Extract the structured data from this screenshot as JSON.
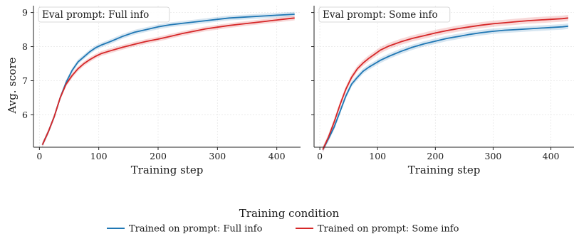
{
  "figure": {
    "shared_ylabel": "Avg. score",
    "legend_title": "Training condition",
    "legend_placement": "bottom-center",
    "colors": {
      "blue": "#1f77b4",
      "red": "#d62728"
    }
  },
  "chart_data": [
    {
      "type": "line",
      "annotation": "Eval prompt: Full info",
      "xlabel": "Training step",
      "ylabel": "Avg. score",
      "xlim": [
        -10,
        440
      ],
      "ylim": [
        5.05,
        9.2
      ],
      "xticks": [
        0,
        100,
        200,
        300,
        400
      ],
      "yticks": [
        6,
        7,
        8,
        9
      ],
      "grid": true,
      "series": [
        {
          "name": "Trained on prompt: Full info",
          "color": "#1f77b4",
          "x": [
            5,
            15,
            25,
            35,
            45,
            55,
            65,
            75,
            85,
            95,
            105,
            120,
            140,
            160,
            180,
            200,
            220,
            240,
            260,
            280,
            300,
            320,
            340,
            360,
            380,
            400,
            420,
            430
          ],
          "y": [
            5.12,
            5.5,
            5.95,
            6.5,
            6.95,
            7.3,
            7.55,
            7.7,
            7.85,
            7.97,
            8.05,
            8.15,
            8.3,
            8.42,
            8.5,
            8.58,
            8.64,
            8.68,
            8.72,
            8.76,
            8.8,
            8.84,
            8.86,
            8.88,
            8.9,
            8.92,
            8.94,
            8.95
          ],
          "band": 0.07
        },
        {
          "name": "Trained on prompt: Some info",
          "color": "#d62728",
          "x": [
            5,
            15,
            25,
            35,
            45,
            55,
            65,
            75,
            85,
            95,
            105,
            120,
            140,
            160,
            180,
            200,
            220,
            240,
            260,
            280,
            300,
            320,
            340,
            360,
            380,
            400,
            420,
            430
          ],
          "y": [
            5.12,
            5.5,
            5.95,
            6.5,
            6.9,
            7.15,
            7.35,
            7.5,
            7.62,
            7.72,
            7.8,
            7.88,
            7.98,
            8.07,
            8.15,
            8.22,
            8.3,
            8.38,
            8.45,
            8.52,
            8.57,
            8.62,
            8.66,
            8.7,
            8.74,
            8.78,
            8.82,
            8.84
          ],
          "band": 0.07
        }
      ]
    },
    {
      "type": "line",
      "annotation": "Eval prompt: Some info",
      "xlabel": "Training step",
      "ylabel": "",
      "xlim": [
        -10,
        440
      ],
      "ylim": [
        5.05,
        9.2
      ],
      "xticks": [
        0,
        100,
        200,
        300,
        400
      ],
      "yticks": [
        6,
        7,
        8,
        9
      ],
      "grid": true,
      "series": [
        {
          "name": "Trained on prompt: Full info",
          "color": "#1f77b4",
          "x": [
            5,
            15,
            25,
            35,
            45,
            55,
            65,
            75,
            85,
            95,
            105,
            120,
            140,
            160,
            180,
            200,
            220,
            240,
            260,
            280,
            300,
            320,
            340,
            360,
            380,
            400,
            420,
            430
          ],
          "y": [
            4.98,
            5.3,
            5.65,
            6.1,
            6.55,
            6.9,
            7.1,
            7.28,
            7.4,
            7.5,
            7.6,
            7.72,
            7.86,
            7.98,
            8.08,
            8.16,
            8.24,
            8.3,
            8.36,
            8.41,
            8.45,
            8.48,
            8.5,
            8.52,
            8.54,
            8.56,
            8.58,
            8.6
          ],
          "band": 0.08
        },
        {
          "name": "Trained on prompt: Some info",
          "color": "#d62728",
          "x": [
            5,
            15,
            25,
            35,
            45,
            55,
            65,
            75,
            85,
            95,
            105,
            120,
            140,
            160,
            180,
            200,
            220,
            240,
            260,
            280,
            300,
            320,
            340,
            360,
            380,
            400,
            420,
            430
          ],
          "y": [
            4.98,
            5.35,
            5.8,
            6.3,
            6.75,
            7.1,
            7.35,
            7.52,
            7.66,
            7.78,
            7.9,
            8.02,
            8.14,
            8.24,
            8.32,
            8.4,
            8.47,
            8.53,
            8.58,
            8.63,
            8.67,
            8.7,
            8.73,
            8.76,
            8.78,
            8.8,
            8.82,
            8.84
          ],
          "band": 0.09
        }
      ]
    }
  ]
}
